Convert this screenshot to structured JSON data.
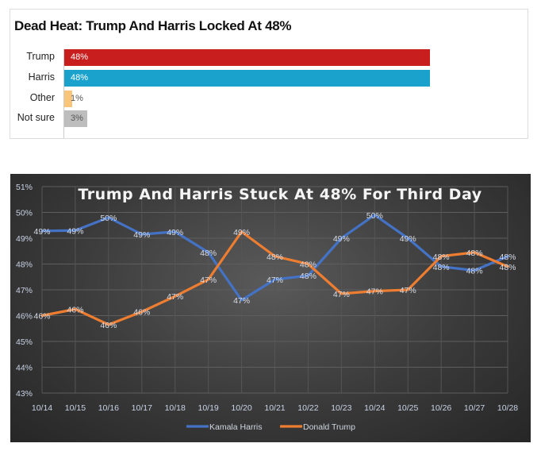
{
  "chart_data": [
    {
      "type": "bar",
      "orientation": "horizontal",
      "title": "Dead Heat: Trump And Harris Locked At 48%",
      "categories": [
        "Trump",
        "Harris",
        "Other",
        "Not sure"
      ],
      "values": [
        48,
        48,
        1,
        3
      ],
      "labels": [
        "48%",
        "48%",
        "1%",
        "3%"
      ],
      "colors": [
        "#c81e1e",
        "#1aa2cc",
        "#f9c57b",
        "#bdbdbd"
      ]
    },
    {
      "type": "line",
      "title": "Trump And Harris Stuck At 48% For Third Day",
      "categories": [
        "10/14",
        "10/15",
        "10/16",
        "10/17",
        "10/18",
        "10/19",
        "10/20",
        "10/21",
        "10/22",
        "10/23",
        "10/24",
        "10/25",
        "10/26",
        "10/27",
        "10/28"
      ],
      "ylim": [
        43,
        51
      ],
      "yticks": [
        "43%",
        "44%",
        "45%",
        "46%",
        "47%",
        "48%",
        "49%",
        "50%",
        "51%"
      ],
      "grid": true,
      "legend_position": "bottom",
      "series": [
        {
          "name": "Kamala Harris",
          "color": "#4472c4",
          "values": [
            49.28,
            49.3,
            49.8,
            49.15,
            49.25,
            48.45,
            46.6,
            47.4,
            47.55,
            49.0,
            49.9,
            49.0,
            47.9,
            47.75,
            48.3
          ],
          "labels": [
            "49%",
            "49%",
            "50%",
            "49%",
            "49%",
            "48%",
            "47%",
            "47%",
            "48%",
            "49%",
            "50%",
            "49%",
            "48%",
            "48%",
            "48%"
          ]
        },
        {
          "name": "Donald Trump",
          "color": "#ed7d31",
          "values": [
            46.0,
            46.25,
            45.65,
            46.15,
            46.75,
            47.4,
            49.25,
            48.3,
            48.0,
            46.85,
            46.95,
            47.0,
            48.3,
            48.45,
            47.9
          ],
          "labels": [
            "46%",
            "46%",
            "46%",
            "46%",
            "47%",
            "47%",
            "49%",
            "48%",
            "48%",
            "47%",
            "47%",
            "47%",
            "48%",
            "48%",
            "48%"
          ]
        }
      ]
    }
  ]
}
